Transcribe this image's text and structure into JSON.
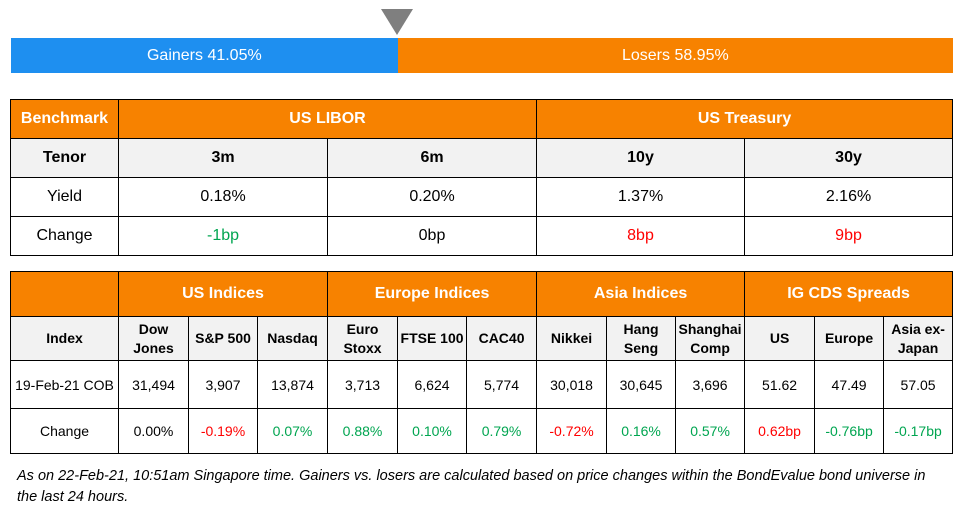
{
  "gainers_losers": {
    "gainers_label": "Gainers 41.05%",
    "losers_label": "Losers 58.95%",
    "gainers_fraction": 0.4105
  },
  "rates": {
    "benchmark_label": "Benchmark",
    "group_libor": "US LIBOR",
    "group_treasury": "US Treasury",
    "tenor_label": "Tenor",
    "tenors": [
      "3m",
      "6m",
      "10y",
      "30y"
    ],
    "yield_label": "Yield",
    "yields": [
      "0.18%",
      "0.20%",
      "1.37%",
      "2.16%"
    ],
    "change_label": "Change",
    "changes": [
      {
        "text": "-1bp",
        "sign": "pos"
      },
      {
        "text": "0bp",
        "sign": "neu"
      },
      {
        "text": "8bp",
        "sign": "neg"
      },
      {
        "text": "9bp",
        "sign": "neg"
      }
    ]
  },
  "indices": {
    "groups": [
      "US Indices",
      "Europe Indices",
      "Asia Indices",
      "IG CDS Spreads"
    ],
    "index_label": "Index",
    "columns": [
      "Dow Jones",
      "S&P 500",
      "Nasdaq",
      "Euro Stoxx",
      "FTSE 100",
      "CAC40",
      "Nikkei",
      "Hang Seng",
      "Shanghai Comp",
      "US",
      "Europe",
      "Asia ex-Japan"
    ],
    "date_label": "19-Feb-21 COB",
    "values": [
      "31,494",
      "3,907",
      "13,874",
      "3,713",
      "6,624",
      "5,774",
      "30,018",
      "30,645",
      "3,696",
      "51.62",
      "47.49",
      "57.05"
    ],
    "change_label": "Change",
    "changes": [
      {
        "text": "0.00%",
        "sign": "neu"
      },
      {
        "text": "-0.19%",
        "sign": "neg"
      },
      {
        "text": "0.07%",
        "sign": "pos"
      },
      {
        "text": "0.88%",
        "sign": "pos"
      },
      {
        "text": "0.10%",
        "sign": "pos"
      },
      {
        "text": "0.79%",
        "sign": "pos"
      },
      {
        "text": "-0.72%",
        "sign": "neg"
      },
      {
        "text": "0.16%",
        "sign": "pos"
      },
      {
        "text": "0.57%",
        "sign": "pos"
      },
      {
        "text": "0.62bp",
        "sign": "neg"
      },
      {
        "text": "-0.76bp",
        "sign": "pos"
      },
      {
        "text": "-0.17bp",
        "sign": "pos"
      }
    ]
  },
  "footnote": "As on 22-Feb-21, 10:51am Singapore time. Gainers vs. losers are calculated based on price changes within the BondEvalue bond universe in the last 24 hours.",
  "colors": {
    "gainers": "#1e8ff0",
    "losers": "#f78200",
    "header": "#f78200",
    "subheader": "#f2f2f2",
    "positive": "#00a550",
    "negative": "#ff0000"
  }
}
